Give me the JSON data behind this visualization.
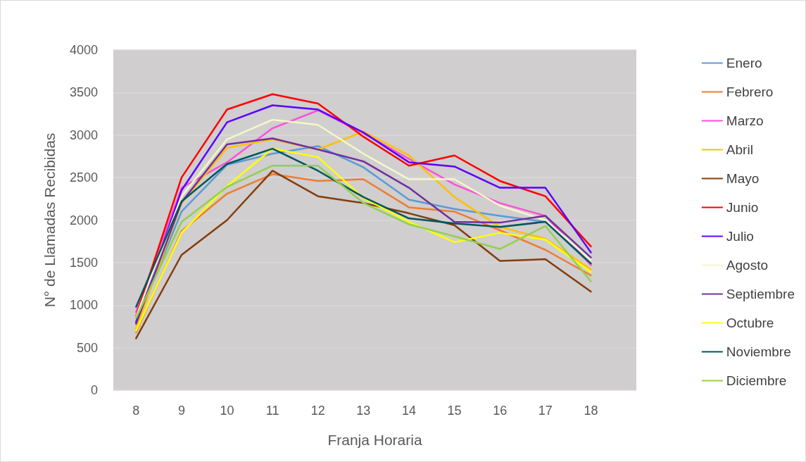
{
  "chart_data": {
    "type": "line",
    "xlabel": "Franja Horaria",
    "ylabel": "N° de Llamadas Recibidas",
    "x": [
      8,
      9,
      10,
      11,
      12,
      13,
      14,
      15,
      16,
      17,
      18
    ],
    "xlim": [
      7.5,
      19
    ],
    "xticks": [
      8,
      9,
      10,
      11,
      12,
      13,
      14,
      15,
      16,
      17,
      18
    ],
    "ylim": [
      0,
      4000
    ],
    "yticks": [
      0,
      500,
      1000,
      1500,
      2000,
      2500,
      3000,
      3500,
      4000
    ],
    "grid": "y",
    "legend": "right",
    "marker": "none",
    "line_style": "solid",
    "series": [
      {
        "name": "Enero",
        "color": "#5b9bd5",
        "values": [
          800,
          2100,
          2650,
          2780,
          2870,
          2620,
          2240,
          2130,
          2050,
          1980,
          1480
        ]
      },
      {
        "name": "Febrero",
        "color": "#ed7d31",
        "values": [
          680,
          1870,
          2310,
          2540,
          2460,
          2480,
          2150,
          2100,
          1880,
          1650,
          1350
        ]
      },
      {
        "name": "Marzo",
        "color": "#ff4fdb",
        "values": [
          920,
          2380,
          2680,
          3080,
          3290,
          3020,
          2720,
          2420,
          2200,
          2050,
          1470
        ]
      },
      {
        "name": "Abril",
        "color": "#ffc000",
        "values": [
          720,
          2200,
          2850,
          2950,
          2830,
          3040,
          2760,
          2270,
          1920,
          1780,
          1420
        ]
      },
      {
        "name": "Mayo",
        "color": "#843c0c",
        "values": [
          610,
          1590,
          2000,
          2580,
          2280,
          2200,
          2080,
          1940,
          1520,
          1540,
          1160
        ]
      },
      {
        "name": "Junio",
        "color": "#ff0000",
        "values": [
          870,
          2500,
          3300,
          3480,
          3370,
          2980,
          2640,
          2760,
          2460,
          2280,
          1690
        ]
      },
      {
        "name": "Julio",
        "color": "#5b00ff",
        "values": [
          800,
          2350,
          3150,
          3350,
          3300,
          3030,
          2680,
          2630,
          2380,
          2380,
          1620
        ]
      },
      {
        "name": "Agosto",
        "color": "#f4f7c9",
        "values": [
          860,
          2280,
          2950,
          3180,
          3120,
          2780,
          2480,
          2480,
          2170,
          2000,
          1530
        ]
      },
      {
        "name": "Septiembre",
        "color": "#7030a0",
        "values": [
          780,
          2210,
          2890,
          2960,
          2830,
          2690,
          2380,
          1980,
          1970,
          2050,
          1560
        ]
      },
      {
        "name": "Octubre",
        "color": "#ffff00",
        "values": [
          700,
          1850,
          2400,
          2840,
          2740,
          2260,
          1980,
          1740,
          1850,
          1770,
          1390
        ]
      },
      {
        "name": "Noviembre",
        "color": "#00565b",
        "values": [
          980,
          2220,
          2660,
          2840,
          2580,
          2270,
          2020,
          1960,
          1920,
          1980,
          1490
        ]
      },
      {
        "name": "Diciembre",
        "color": "#92d050",
        "values": [
          850,
          1980,
          2390,
          2640,
          2640,
          2200,
          1950,
          1810,
          1660,
          1930,
          1280
        ]
      }
    ]
  }
}
